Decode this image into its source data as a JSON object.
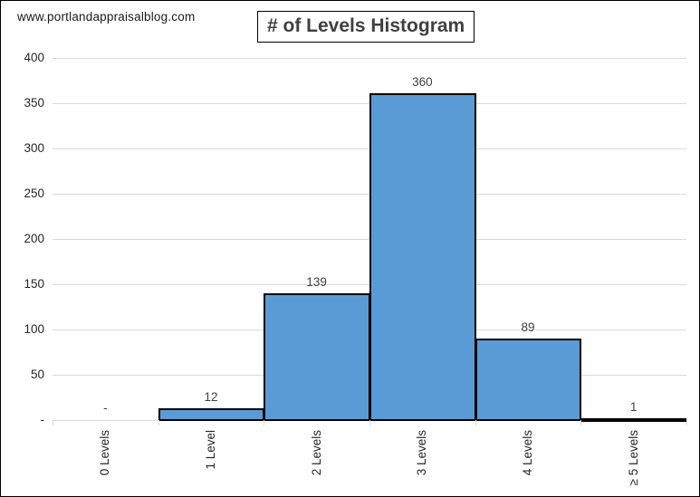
{
  "watermark": "www.portlandappraisalblog.com",
  "title": "# of Levels Histogram",
  "colors": {
    "bar_fill": "#5b9bd5",
    "bar_border": "#000000",
    "gridline": "#d9d9d9",
    "axis_text": "#262626",
    "title_text": "#404040"
  },
  "chart_data": {
    "type": "bar",
    "title": "# of Levels Histogram",
    "categories": [
      "0 Levels",
      "1 Level",
      "2 Levels",
      "3 Levels",
      "4 Levels",
      "≥ 5 Levels"
    ],
    "values": [
      0,
      12,
      139,
      360,
      89,
      1
    ],
    "data_labels": [
      "-",
      "12",
      "139",
      "360",
      "89",
      "1"
    ],
    "y_ticks": [
      400,
      350,
      300,
      250,
      200,
      150,
      100,
      50,
      0
    ],
    "y_tick_labels": [
      "400",
      "350",
      "300",
      "250",
      "200",
      "150",
      "100",
      "50",
      "-"
    ],
    "ylim": [
      0,
      400
    ],
    "xlabel": "",
    "ylabel": "",
    "grid": true,
    "legend": false,
    "bar_gap": 0,
    "orientation": "vertical"
  }
}
